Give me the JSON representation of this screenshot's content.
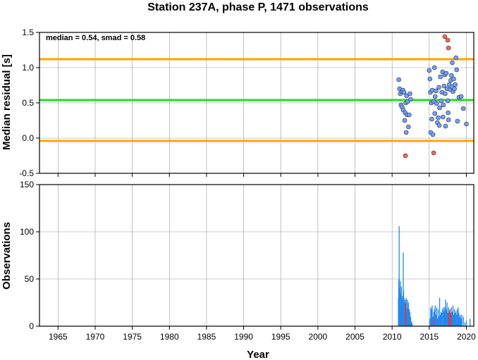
{
  "chart_data": [
    {
      "type": "scatter",
      "title": "Station 237A, phase P, 1471 observations",
      "ylabel": "Median residual [s]",
      "annotation": "median = 0.54, smad = 0.58",
      "xlim": [
        1962.5,
        2021
      ],
      "ylim": [
        -0.5,
        1.5
      ],
      "yticks": [
        "-0.5",
        "0.0",
        "0.5",
        "1.0",
        "1.5"
      ],
      "grid": true,
      "reference_lines": [
        {
          "y": 0.54,
          "color": "#22dd22"
        },
        {
          "y": 1.12,
          "color": "#ffa500"
        },
        {
          "y": -0.04,
          "color": "#ffa500"
        }
      ],
      "series": [
        {
          "color": "#6f9fff",
          "points": [
            [
              2010.9,
              0.83
            ],
            [
              2011.0,
              0.7
            ],
            [
              2011.1,
              0.63
            ],
            [
              2011.2,
              0.47
            ],
            [
              2011.3,
              0.66
            ],
            [
              2011.35,
              0.44
            ],
            [
              2011.45,
              0.68
            ],
            [
              2011.5,
              0.4
            ],
            [
              2011.6,
              0.65
            ],
            [
              2011.7,
              0.25
            ],
            [
              2011.75,
              0.36
            ],
            [
              2011.85,
              0.5
            ],
            [
              2011.9,
              0.08
            ],
            [
              2011.95,
              0.6
            ],
            [
              2012.0,
              0.33
            ],
            [
              2012.1,
              0.52
            ],
            [
              2012.2,
              0.16
            ],
            [
              2012.3,
              0.33
            ],
            [
              2012.4,
              0.63
            ],
            [
              2012.5,
              0.55
            ],
            [
              2015.0,
              0.96
            ],
            [
              2015.1,
              0.84
            ],
            [
              2015.15,
              0.65
            ],
            [
              2015.2,
              0.08
            ],
            [
              2015.3,
              0.5
            ],
            [
              2015.35,
              0.27
            ],
            [
              2015.4,
              0.68
            ],
            [
              2015.5,
              0.05
            ],
            [
              2015.6,
              0.52
            ],
            [
              2015.7,
              1.0
            ],
            [
              2015.75,
              0.35
            ],
            [
              2015.8,
              0.59
            ],
            [
              2015.9,
              0.67
            ],
            [
              2016.0,
              0.49
            ],
            [
              2016.1,
              0.22
            ],
            [
              2016.2,
              0.29
            ],
            [
              2016.3,
              0.72
            ],
            [
              2016.35,
              0.18
            ],
            [
              2016.4,
              0.43
            ],
            [
              2016.5,
              0.87
            ],
            [
              2016.6,
              0.53
            ],
            [
              2016.7,
              0.65
            ],
            [
              2016.8,
              0.94
            ],
            [
              2016.85,
              0.3
            ],
            [
              2016.9,
              0.47
            ],
            [
              2017.0,
              0.74
            ],
            [
              2017.1,
              0.9
            ],
            [
              2017.15,
              0.63
            ],
            [
              2017.2,
              0.17
            ],
            [
              2017.3,
              0.92
            ],
            [
              2017.4,
              0.7
            ],
            [
              2017.5,
              0.53
            ],
            [
              2017.55,
              0.36
            ],
            [
              2017.6,
              0.26
            ],
            [
              2017.7,
              0.76
            ],
            [
              2017.8,
              0.69
            ],
            [
              2017.9,
              0.82
            ],
            [
              2018.0,
              0.89
            ],
            [
              2018.05,
              0.73
            ],
            [
              2018.1,
              1.07
            ],
            [
              2018.2,
              0.66
            ],
            [
              2018.3,
              0.84
            ],
            [
              2018.4,
              0.7
            ],
            [
              2018.5,
              0.76
            ],
            [
              2018.6,
              1.14
            ],
            [
              2018.7,
              0.97
            ],
            [
              2018.8,
              0.24
            ],
            [
              2019.0,
              0.58
            ],
            [
              2019.3,
              0.59
            ],
            [
              2019.6,
              0.42
            ],
            [
              2020.0,
              0.2
            ]
          ]
        },
        {
          "color": "#ff6655",
          "points": [
            [
              2011.8,
              -0.25
            ],
            [
              2015.6,
              -0.21
            ],
            [
              2017.1,
              1.44
            ],
            [
              2017.5,
              1.39
            ],
            [
              2017.6,
              1.28
            ]
          ]
        }
      ]
    },
    {
      "type": "bar",
      "xlabel": "Year",
      "ylabel": "Observations",
      "xlim": [
        1962.5,
        2021
      ],
      "ylim": [
        0,
        150
      ],
      "yticks": [
        "0",
        "50",
        "100",
        "150"
      ],
      "xticks": [
        "1965",
        "1970",
        "1975",
        "1980",
        "1985",
        "1990",
        "1995",
        "2000",
        "2005",
        "2010",
        "2015",
        "2020"
      ],
      "grid": true,
      "series": [
        {
          "color": "#2288ee",
          "points": [
            [
              2010.85,
              30
            ],
            [
              2010.9,
              50
            ],
            [
              2010.95,
              106
            ],
            [
              2011.0,
              40
            ],
            [
              2011.05,
              25
            ],
            [
              2011.1,
              48
            ],
            [
              2011.15,
              35
            ],
            [
              2011.2,
              20
            ],
            [
              2011.25,
              42
            ],
            [
              2011.3,
              28
            ],
            [
              2011.35,
              18
            ],
            [
              2011.4,
              32
            ],
            [
              2011.45,
              22
            ],
            [
              2011.5,
              78
            ],
            [
              2011.55,
              38
            ],
            [
              2011.6,
              30
            ],
            [
              2011.65,
              20
            ],
            [
              2011.7,
              25
            ],
            [
              2011.75,
              28
            ],
            [
              2011.8,
              15
            ],
            [
              2011.85,
              22
            ],
            [
              2011.9,
              30
            ],
            [
              2011.95,
              18
            ],
            [
              2012.0,
              12
            ],
            [
              2012.05,
              28
            ],
            [
              2012.1,
              20
            ],
            [
              2012.15,
              14
            ],
            [
              2012.2,
              25
            ],
            [
              2012.25,
              10
            ],
            [
              2012.3,
              18
            ],
            [
              2012.35,
              8
            ],
            [
              2012.4,
              15
            ],
            [
              2012.45,
              6
            ],
            [
              2012.5,
              10
            ],
            [
              2012.6,
              5
            ],
            [
              2012.7,
              3
            ],
            [
              2015.1,
              8
            ],
            [
              2015.2,
              20
            ],
            [
              2015.3,
              18
            ],
            [
              2015.4,
              22
            ],
            [
              2015.5,
              10
            ],
            [
              2015.6,
              15
            ],
            [
              2015.7,
              18
            ],
            [
              2015.8,
              22
            ],
            [
              2015.9,
              12
            ],
            [
              2016.0,
              20
            ],
            [
              2016.1,
              8
            ],
            [
              2016.2,
              18
            ],
            [
              2016.3,
              10
            ],
            [
              2016.4,
              30
            ],
            [
              2016.5,
              12
            ],
            [
              2016.6,
              15
            ],
            [
              2016.7,
              14
            ],
            [
              2016.8,
              18
            ],
            [
              2016.9,
              20
            ],
            [
              2017.0,
              16
            ],
            [
              2017.1,
              20
            ],
            [
              2017.2,
              28
            ],
            [
              2017.3,
              18
            ],
            [
              2017.4,
              25
            ],
            [
              2017.5,
              14
            ],
            [
              2017.6,
              20
            ],
            [
              2017.7,
              16
            ],
            [
              2017.8,
              18
            ],
            [
              2017.9,
              14
            ],
            [
              2018.0,
              20
            ],
            [
              2018.1,
              15
            ],
            [
              2018.2,
              22
            ],
            [
              2018.3,
              12
            ],
            [
              2018.4,
              18
            ],
            [
              2018.5,
              14
            ],
            [
              2018.6,
              16
            ],
            [
              2018.7,
              12
            ],
            [
              2018.8,
              18
            ],
            [
              2018.9,
              20
            ],
            [
              2019.0,
              14
            ],
            [
              2019.1,
              10
            ],
            [
              2019.2,
              12
            ],
            [
              2019.3,
              8
            ],
            [
              2019.4,
              12
            ],
            [
              2019.6,
              10
            ],
            [
              2019.8,
              4
            ],
            [
              2020.0,
              6
            ],
            [
              2020.5,
              8
            ]
          ]
        },
        {
          "color": "#ee3333",
          "points": [
            [
              2011.8,
              25
            ],
            [
              2011.85,
              20
            ],
            [
              2015.7,
              8
            ],
            [
              2017.6,
              16
            ],
            [
              2017.8,
              18
            ],
            [
              2017.9,
              14
            ]
          ]
        }
      ]
    }
  ]
}
